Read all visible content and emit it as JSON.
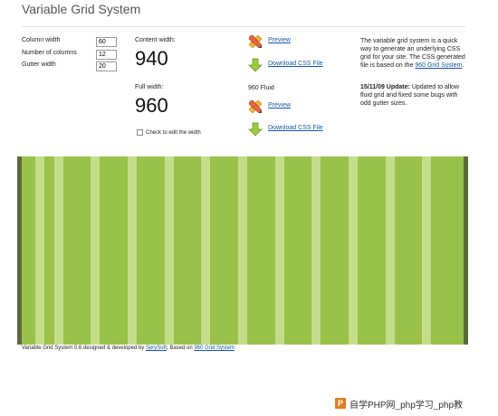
{
  "page": {
    "title": "Variable Grid System"
  },
  "form": {
    "column_width": {
      "label": "Column width",
      "value": "60"
    },
    "num_columns": {
      "label": "Number of columns",
      "value": "12"
    },
    "gutter_width": {
      "label": "Gutter width",
      "value": "20"
    }
  },
  "content": {
    "label": "Content width:",
    "value": "940"
  },
  "full": {
    "label": "Full width:",
    "value": "960"
  },
  "edit_width": {
    "label": "Check to edit the width",
    "checked": false
  },
  "downloads": {
    "preview_label": "Preview",
    "download_label": "Download CSS File",
    "fluid_label": "960 Fluid",
    "preview2_label": "Preview",
    "download2_label": "Download CSS File"
  },
  "description": {
    "intro": "The variable grid system is a quick way to generate an underlying CSS grid for your site. The CSS generated file is based on the ",
    "intro_link": "960 Grid System",
    "intro_end": ".",
    "update_date": "15/11/09 Update:",
    "update_text": " Updated to allow fluid grid and fixed some bugs with odd gutter sizes."
  },
  "grid": {
    "columns": 12,
    "column_color": "#9ac14a",
    "gutter_color": "#c2de8a",
    "edge_color": "#5d6a3f"
  },
  "footer": {
    "text1": "Variable Grid System 0.6 designed & developed by ",
    "link1": "SprySoft",
    "text2": ", Based on ",
    "link2": "960 Grid System"
  },
  "watermark": {
    "logo": "P",
    "text": "自学PHP网_php学习_php教"
  },
  "icons": {
    "preview": "ruler-pencil-icon",
    "download": "download-arrow-icon"
  },
  "colors": {
    "link": "#1a56a0",
    "title": "#555555"
  }
}
